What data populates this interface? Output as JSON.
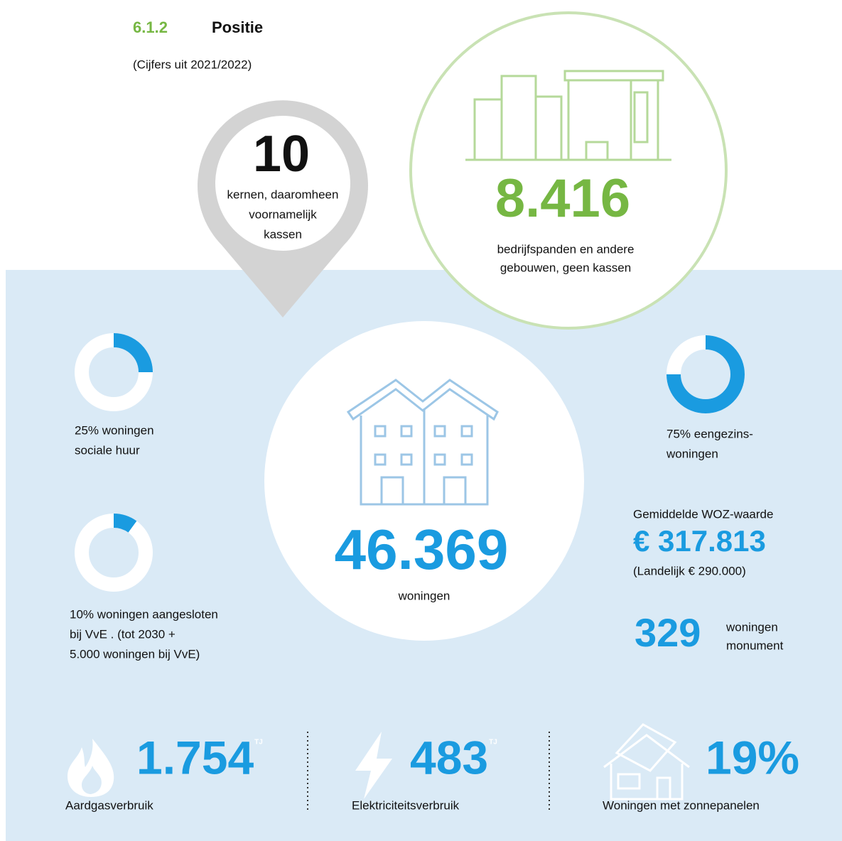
{
  "header": {
    "number": "6.1.2",
    "title": "Positie",
    "subtitle": "(Cijfers uit 2021/2022)"
  },
  "pin": {
    "value": "10",
    "lines": [
      "kernen, daaromheen",
      "voornamelijk",
      "kassen"
    ]
  },
  "buildings": {
    "value": "8.416",
    "lines": [
      "bedrijfspanden en andere",
      "gebouwen, geen kassen"
    ]
  },
  "homes": {
    "value": "46.369",
    "label": "woningen"
  },
  "donuts": [
    {
      "percent": 25,
      "lines": [
        "25% woningen",
        "sociale huur"
      ]
    },
    {
      "percent": 10,
      "lines": [
        "10% woningen aangesloten",
        "bij VvE . (tot 2030 +",
        "5.000 woningen bij VvE)"
      ]
    },
    {
      "percent": 75,
      "lines": [
        "75% eengezins-",
        "woningen"
      ]
    }
  ],
  "woz": {
    "label": "Gemiddelde WOZ-waarde",
    "value": "€ 317.813",
    "national": "(Landelijk € 290.000)"
  },
  "monument": {
    "value": "329",
    "lines": [
      "woningen",
      "monument"
    ]
  },
  "energy": [
    {
      "value": "1.754",
      "unit": "TJ",
      "label": "Aardgasverbruik"
    },
    {
      "value": "483",
      "unit": "TJ",
      "label": "Elektriciteitsverbruik"
    },
    {
      "value": "19%",
      "label": "Woningen met zonnepanelen"
    }
  ]
}
